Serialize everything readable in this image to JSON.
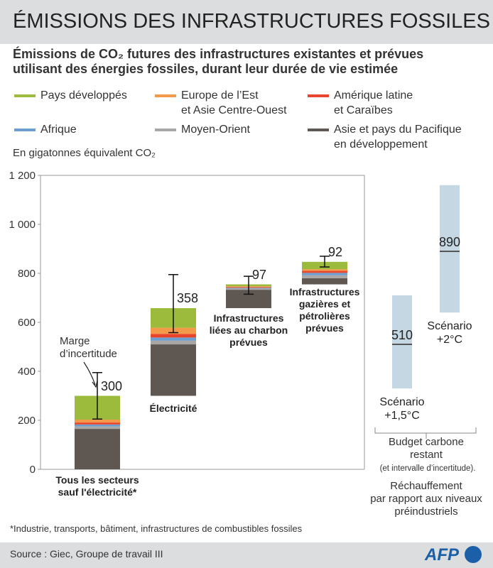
{
  "title": "ÉMISSIONS DES INFRASTRUCTURES FOSSILES",
  "subtitle": "Émissions de CO₂ futures des infrastructures existantes et prévues\nutilisant des énergies fossiles, durant leur durée de vie estimée",
  "footnote": "*Industrie, transports, bâtiment, infrastructures de combustibles fossiles",
  "source": "Source : Giec, Groupe de travail III",
  "logo": "AFP",
  "chart_data": {
    "type": "waterfall",
    "y_label": "En gigatonnes équivalent CO₂",
    "ylim": [
      0,
      1200
    ],
    "yticks": [
      0,
      200,
      400,
      600,
      800,
      {
        "value": 1000,
        "label": "1 000"
      },
      {
        "value": 1200,
        "label": "1 200"
      }
    ],
    "categories": [
      "Tous les secteurs\nsauf l'électricité*",
      "Électricité",
      "Infrastructures\nliées au charbon\nprévues",
      "Infrastructures\ngazières et\npétrolières\nprévues"
    ],
    "series": [
      {
        "name": "Pays développés",
        "color": "#9cba3c",
        "values": [
          97,
          80,
          8,
          30
        ]
      },
      {
        "name": "Europe de l’Est\net Asie Centre-Ouest",
        "color": "#f39a4a",
        "values": [
          12,
          25,
          3,
          7
        ]
      },
      {
        "name": "Amérique latine\net Caraïbes",
        "color": "#e8452c",
        "values": [
          8,
          15,
          3,
          8
        ]
      },
      {
        "name": "Afrique",
        "color": "#6c9fcf",
        "values": [
          8,
          13,
          3,
          10
        ]
      },
      {
        "name": "Moyen-Orient",
        "color": "#a9a7a5",
        "values": [
          10,
          15,
          5,
          12
        ]
      },
      {
        "name": "Asie et pays du Pacifique\nen développement",
        "color": "#5f5752",
        "values": [
          165,
          210,
          75,
          25
        ]
      }
    ],
    "totals": [
      300,
      358,
      97,
      92
    ],
    "uncertainty": [
      [
        205,
        395
      ],
      [
        558,
        795
      ],
      [
        715,
        788
      ],
      [
        826,
        870
      ]
    ],
    "uncertainty_label": "Marge\nd’incertitude",
    "scenarios": [
      {
        "name": "Scénario\n+1,5°C",
        "range": [
          330,
          710
        ],
        "median": 510,
        "color": "#c4d7e3"
      },
      {
        "name": "Scénario\n+2°C",
        "range": [
          640,
          1160
        ],
        "median": 890,
        "color": "#c4d7e3"
      }
    ],
    "scenario_caption": "Budget carbone\nrestant",
    "scenario_note": "(et intervalle d’incertitude).",
    "scenario_caption2": "Réchauffement\npar rapport aux niveaux\npréindustriels"
  }
}
